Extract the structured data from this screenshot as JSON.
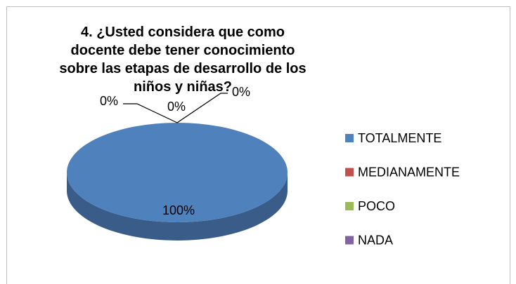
{
  "chart_data": {
    "type": "pie",
    "title": "4. ¿Usted considera que como docente debe tener conocimiento sobre las etapas de desarrollo de los niños y niñas?",
    "categories": [
      "TOTALMENTE",
      "MEDIANAMENTE",
      "POCO",
      "NADA"
    ],
    "values": [
      100,
      0,
      0,
      0
    ],
    "value_labels": [
      "100%",
      "0%",
      "0%",
      "0%"
    ],
    "colors": [
      "#4f81bd",
      "#c0504d",
      "#9bbb59",
      "#8064a2"
    ],
    "legend": "right"
  }
}
